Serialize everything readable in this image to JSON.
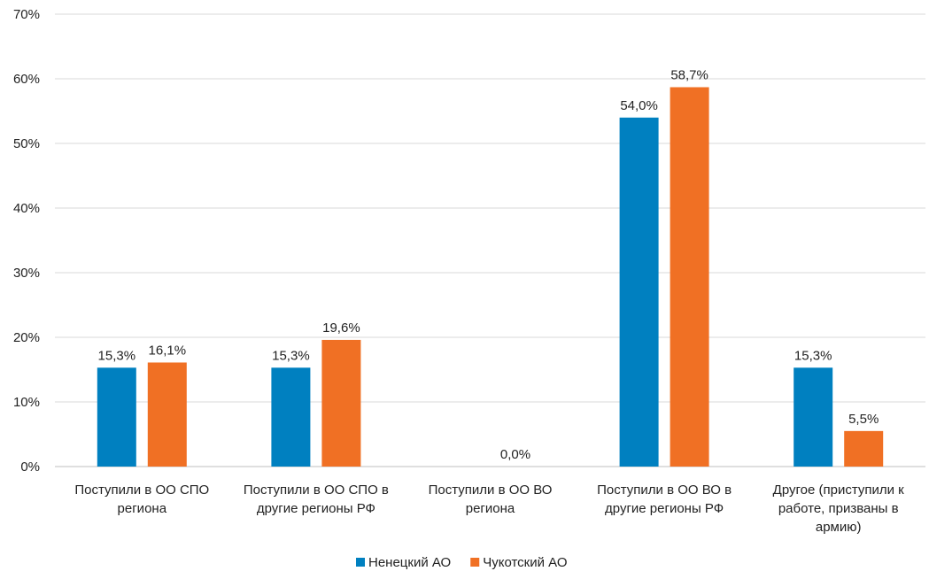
{
  "chart_data": {
    "type": "bar",
    "categories": [
      [
        "Поступили в ОО СПО",
        "региона"
      ],
      [
        "Поступили в ОО СПО в",
        "другие регионы РФ"
      ],
      [
        "Поступили в ОО ВО",
        "региона"
      ],
      [
        "Поступили в ОО ВО в",
        "другие регионы РФ"
      ],
      [
        "Другое (приступили к",
        "работе, призваны в",
        "армию)"
      ]
    ],
    "series": [
      {
        "name": "Ненецкий АО",
        "color": "#0080C0",
        "values": [
          15.3,
          15.3,
          0.0,
          54.0,
          15.3
        ],
        "labels": [
          "15,3%",
          "15,3%",
          "",
          "54,0%",
          "15,3%"
        ]
      },
      {
        "name": "Чукотский АО",
        "color": "#F07024",
        "values": [
          16.1,
          19.6,
          0.0,
          58.7,
          5.5
        ],
        "labels": [
          "16,1%",
          "19,6%",
          "0,0%",
          "58,7%",
          "5,5%"
        ]
      }
    ],
    "yticks": [
      "0%",
      "10%",
      "20%",
      "30%",
      "40%",
      "50%",
      "60%",
      "70%"
    ],
    "ylim": [
      0,
      70
    ],
    "grid": true,
    "legend_position": "bottom"
  }
}
